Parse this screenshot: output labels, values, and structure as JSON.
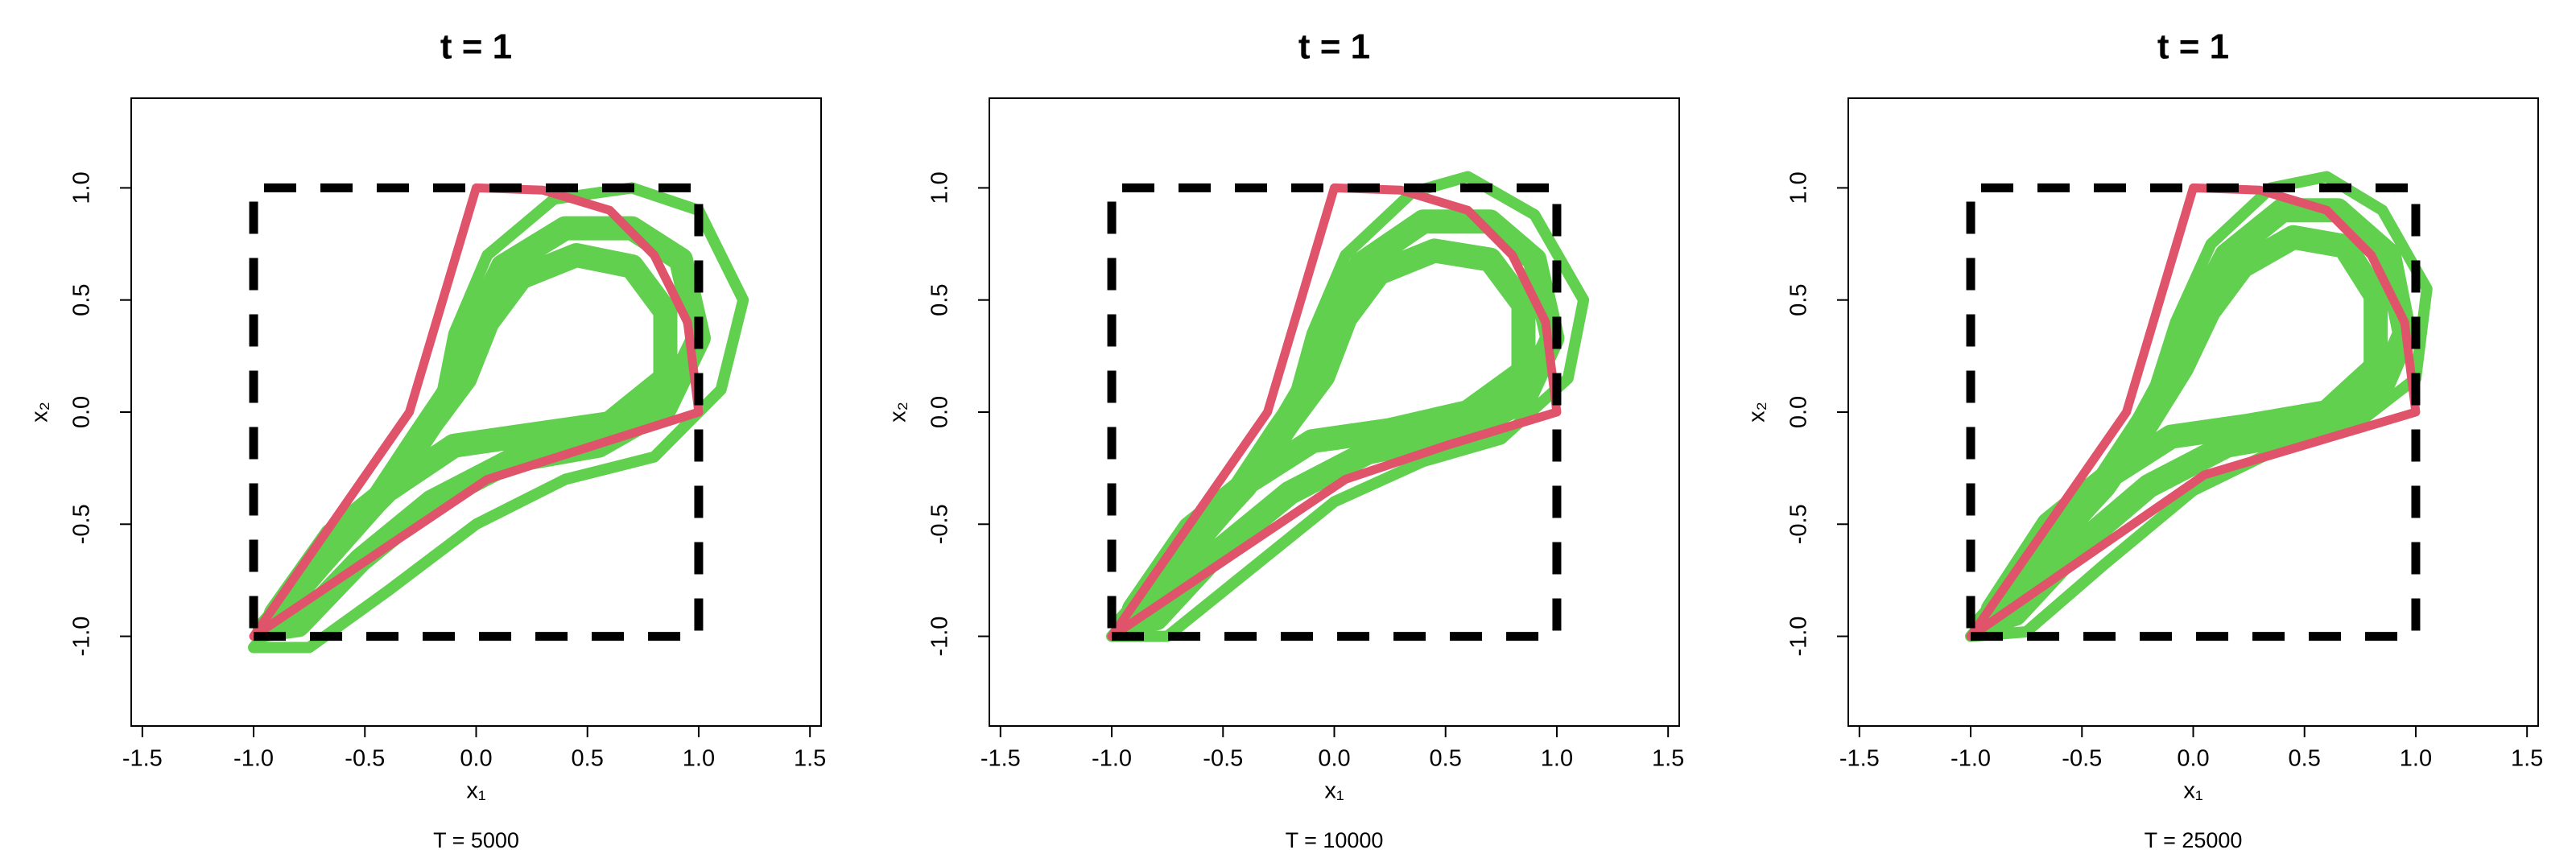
{
  "chart_data": [
    {
      "type": "line",
      "title": "t = 1",
      "xlabel": "x₁",
      "ylabel": "x₂",
      "caption": "T = 5000",
      "xlim": [
        -1.55,
        1.55
      ],
      "ylim": [
        -1.4,
        1.4
      ],
      "xticks": [
        -1.5,
        {
          "value": -1,
          "label": "-1.0"
        },
        -0.5,
        {
          "value": 0,
          "label": "0.0"
        },
        0.5,
        {
          "value": 1,
          "label": "1.0"
        },
        1.5
      ],
      "yticks": [
        {
          "value": -1,
          "label": "-1.0"
        },
        -0.5,
        {
          "value": 0,
          "label": "0.0"
        },
        0.5,
        {
          "value": 1,
          "label": "1.0"
        }
      ],
      "series": [
        {
          "color": "#61D04F",
          "width": 14,
          "x": [
            -1,
            -0.75,
            -0.5,
            -0.3,
            -0.15,
            -0.1,
            0.05,
            0.35,
            0.7,
            1.0,
            1.2,
            1.1,
            0.8,
            0.4,
            0.0,
            -0.4,
            -0.75,
            -1
          ],
          "values": [
            -1.05,
            -0.75,
            -0.45,
            -0.15,
            0.1,
            0.35,
            0.7,
            0.95,
            1.0,
            0.9,
            0.5,
            0.1,
            -0.2,
            -0.3,
            -0.5,
            -0.8,
            -1.05,
            -1.05
          ]
        },
        {
          "color": "#61D04F",
          "width": 30,
          "x": [
            -0.95,
            -0.7,
            -0.45,
            -0.25,
            -0.1,
            -0.02,
            0.12,
            0.4,
            0.7,
            0.92,
            1.0,
            0.85,
            0.55,
            0.15,
            -0.2,
            -0.52,
            -0.8,
            -0.95
          ],
          "values": [
            -0.97,
            -0.68,
            -0.4,
            -0.1,
            0.12,
            0.37,
            0.65,
            0.82,
            0.82,
            0.68,
            0.33,
            0.02,
            -0.15,
            -0.22,
            -0.4,
            -0.66,
            -0.95,
            -0.97
          ]
        },
        {
          "color": "#61D04F",
          "width": 30,
          "x": [
            -0.9,
            -0.65,
            -0.4,
            -0.2,
            -0.05,
            0.05,
            0.2,
            0.45,
            0.7,
            0.85,
            0.85,
            0.6,
            0.25,
            -0.1,
            -0.4,
            -0.65,
            -0.9
          ],
          "values": [
            -0.9,
            -0.6,
            -0.35,
            -0.05,
            0.15,
            0.4,
            0.6,
            0.7,
            0.65,
            0.45,
            0.15,
            -0.05,
            -0.1,
            -0.15,
            -0.35,
            -0.55,
            -0.9
          ]
        },
        {
          "color": "#DF536B",
          "width": 11,
          "x": [
            -1,
            -0.3,
            0,
            0.3,
            0.6,
            0.8,
            0.95,
            1,
            0.05,
            -1
          ],
          "values": [
            -1,
            0,
            1,
            0.99,
            0.9,
            0.7,
            0.4,
            0,
            -0.3,
            -1
          ]
        },
        {
          "color": "#000000",
          "width": 11,
          "dash": true,
          "x": [
            -1,
            1,
            1,
            -1,
            -1
          ],
          "values": [
            -1,
            -1,
            1,
            1,
            -1
          ]
        }
      ]
    },
    {
      "type": "line",
      "title": "t = 1",
      "xlabel": "x₁",
      "ylabel": "x₂",
      "caption": "T = 10000",
      "xlim": [
        -1.55,
        1.55
      ],
      "ylim": [
        -1.4,
        1.4
      ],
      "xticks": [
        -1.5,
        {
          "value": -1,
          "label": "-1.0"
        },
        -0.5,
        {
          "value": 0,
          "label": "0.0"
        },
        0.5,
        {
          "value": 1,
          "label": "1.0"
        },
        1.5
      ],
      "yticks": [
        {
          "value": -1,
          "label": "-1.0"
        },
        -0.5,
        {
          "value": 0,
          "label": "0.0"
        },
        0.5,
        {
          "value": 1,
          "label": "1.0"
        }
      ],
      "series": [
        {
          "color": "#61D04F",
          "width": 14,
          "x": [
            -1,
            -0.75,
            -0.5,
            -0.3,
            -0.17,
            -0.1,
            0.05,
            0.35,
            0.6,
            0.9,
            1.12,
            1.05,
            0.75,
            0.4,
            0.0,
            -0.4,
            -0.75,
            -1
          ],
          "values": [
            -1.0,
            -0.72,
            -0.42,
            -0.12,
            0.1,
            0.35,
            0.7,
            0.98,
            1.05,
            0.88,
            0.5,
            0.15,
            -0.12,
            -0.22,
            -0.4,
            -0.72,
            -1.0,
            -1.0
          ]
        },
        {
          "color": "#61D04F",
          "width": 30,
          "x": [
            -0.95,
            -0.7,
            -0.45,
            -0.25,
            -0.1,
            -0.02,
            0.12,
            0.4,
            0.7,
            0.9,
            0.98,
            0.85,
            0.55,
            0.15,
            -0.2,
            -0.52,
            -0.8,
            -0.95
          ],
          "values": [
            -0.95,
            -0.67,
            -0.38,
            -0.08,
            0.13,
            0.38,
            0.66,
            0.85,
            0.85,
            0.68,
            0.33,
            0.05,
            -0.1,
            -0.18,
            -0.36,
            -0.62,
            -0.92,
            -0.95
          ]
        },
        {
          "color": "#61D04F",
          "width": 30,
          "x": [
            -0.9,
            -0.65,
            -0.4,
            -0.2,
            -0.05,
            0.05,
            0.2,
            0.45,
            0.7,
            0.85,
            0.85,
            0.6,
            0.25,
            -0.1,
            -0.4,
            -0.65,
            -0.9
          ],
          "values": [
            -0.88,
            -0.6,
            -0.33,
            -0.04,
            0.16,
            0.42,
            0.62,
            0.72,
            0.68,
            0.48,
            0.18,
            0.0,
            -0.08,
            -0.13,
            -0.32,
            -0.52,
            -0.88
          ]
        },
        {
          "color": "#DF536B",
          "width": 11,
          "x": [
            -1,
            -0.3,
            0,
            0.3,
            0.6,
            0.8,
            0.95,
            1,
            0.5,
            0.05,
            -1
          ],
          "values": [
            -1,
            0,
            1,
            0.99,
            0.9,
            0.7,
            0.4,
            0,
            -0.15,
            -0.3,
            -1
          ]
        },
        {
          "color": "#000000",
          "width": 11,
          "dash": true,
          "x": [
            -1,
            1,
            1,
            -1,
            -1
          ],
          "values": [
            -1,
            -1,
            1,
            1,
            -1
          ]
        }
      ]
    },
    {
      "type": "line",
      "title": "t = 1",
      "xlabel": "x₁",
      "ylabel": "x₂",
      "caption": "T = 25000",
      "xlim": [
        -1.55,
        1.55
      ],
      "ylim": [
        -1.4,
        1.4
      ],
      "xticks": [
        -1.5,
        {
          "value": -1,
          "label": "-1.0"
        },
        -0.5,
        {
          "value": 0,
          "label": "0.0"
        },
        0.5,
        {
          "value": 1,
          "label": "1.0"
        },
        1.5
      ],
      "yticks": [
        {
          "value": -1,
          "label": "-1.0"
        },
        -0.5,
        {
          "value": 0,
          "label": "0.0"
        },
        0.5,
        {
          "value": 1,
          "label": "1.0"
        }
      ],
      "series": [
        {
          "color": "#61D04F",
          "width": 14,
          "x": [
            -1,
            -0.75,
            -0.5,
            -0.3,
            -0.17,
            -0.08,
            0.08,
            0.35,
            0.6,
            0.85,
            1.05,
            1.0,
            0.7,
            0.35,
            0.0,
            -0.4,
            -0.75,
            -1
          ],
          "values": [
            -1.0,
            -0.72,
            -0.42,
            -0.12,
            0.12,
            0.4,
            0.75,
            1.0,
            1.05,
            0.9,
            0.55,
            0.15,
            -0.08,
            -0.18,
            -0.35,
            -0.68,
            -0.98,
            -1.0
          ]
        },
        {
          "color": "#61D04F",
          "width": 30,
          "x": [
            -0.95,
            -0.7,
            -0.45,
            -0.25,
            -0.1,
            0.0,
            0.15,
            0.4,
            0.65,
            0.88,
            0.95,
            0.82,
            0.55,
            0.15,
            -0.2,
            -0.52,
            -0.8,
            -0.95
          ],
          "values": [
            -0.95,
            -0.67,
            -0.38,
            -0.08,
            0.15,
            0.42,
            0.7,
            0.9,
            0.9,
            0.7,
            0.35,
            0.05,
            -0.08,
            -0.15,
            -0.33,
            -0.6,
            -0.9,
            -0.95
          ]
        },
        {
          "color": "#61D04F",
          "width": 30,
          "x": [
            -0.9,
            -0.65,
            -0.4,
            -0.2,
            -0.05,
            0.07,
            0.22,
            0.45,
            0.68,
            0.82,
            0.82,
            0.6,
            0.25,
            -0.1,
            -0.4,
            -0.65,
            -0.9
          ],
          "values": [
            -0.88,
            -0.6,
            -0.33,
            -0.04,
            0.2,
            0.45,
            0.65,
            0.78,
            0.74,
            0.52,
            0.2,
            0.0,
            -0.06,
            -0.11,
            -0.3,
            -0.5,
            -0.88
          ]
        },
        {
          "color": "#DF536B",
          "width": 11,
          "x": [
            -1,
            -0.3,
            0,
            0.3,
            0.6,
            0.8,
            0.95,
            1,
            0.05,
            -1
          ],
          "values": [
            -1,
            0,
            1,
            0.99,
            0.9,
            0.7,
            0.4,
            0,
            -0.28,
            -1
          ]
        },
        {
          "color": "#000000",
          "width": 11,
          "dash": true,
          "x": [
            -1,
            1,
            1,
            -1,
            -1
          ],
          "values": [
            -1,
            -1,
            1,
            1,
            -1
          ]
        }
      ]
    }
  ]
}
